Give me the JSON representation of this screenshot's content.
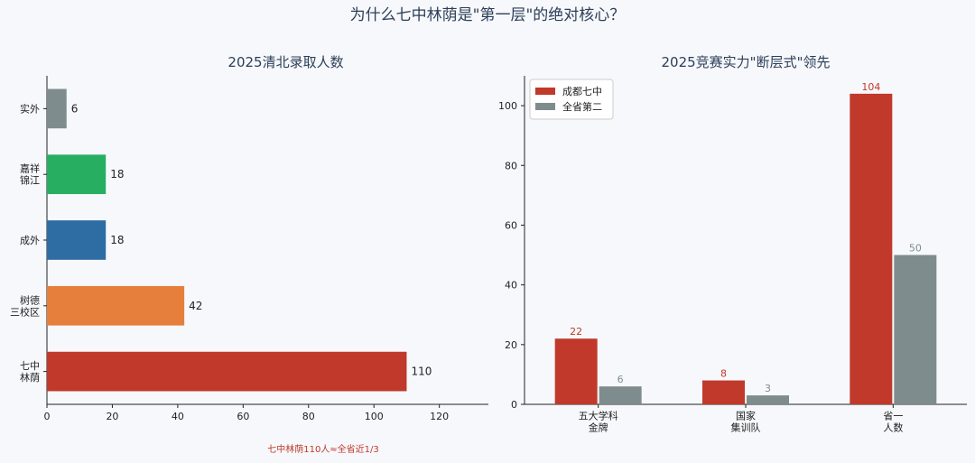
{
  "figure": {
    "title": "为什么七中林荫是\"第一层\"的绝对核心？"
  },
  "chart_data": [
    {
      "type": "bar",
      "orientation": "horizontal",
      "title": "2025清北录取人数",
      "categories": [
        "七中\n林荫",
        "树德\n三校区",
        "成外",
        "嘉祥\n锦江",
        "实外"
      ],
      "values": [
        110,
        42,
        18,
        18,
        6
      ],
      "colors": [
        "#c0392b",
        "#e67e3c",
        "#2e6da4",
        "#27ae60",
        "#7f8c8d"
      ],
      "xlim": [
        0,
        135
      ],
      "xticks": [
        0,
        20,
        40,
        60,
        80,
        100,
        120
      ],
      "annotation": "七中林荫110人≈全省近1/3",
      "annotation_color": "#c0392b"
    },
    {
      "type": "bar",
      "title": "2025竞赛实力\"断层式\"领先",
      "categories": [
        "五大学科\n金牌",
        "国家\n集训队",
        "省一\n人数"
      ],
      "series": [
        {
          "name": "成都七中",
          "values": [
            22,
            8,
            104
          ],
          "color": "#c0392b"
        },
        {
          "name": "全省第二",
          "values": [
            6,
            3,
            50
          ],
          "color": "#7f8c8d"
        }
      ],
      "ylim": [
        0,
        110
      ],
      "yticks": [
        0,
        20,
        40,
        60,
        80,
        100
      ],
      "legend": "top-left"
    }
  ]
}
